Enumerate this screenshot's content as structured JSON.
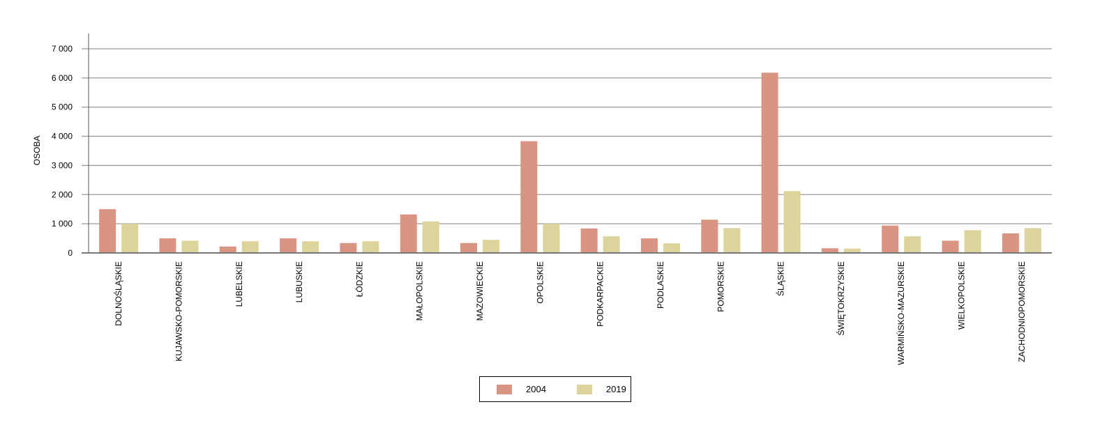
{
  "chart_data": {
    "type": "bar",
    "title": "",
    "xlabel": "",
    "ylabel": "OSOBA",
    "ylim": [
      0,
      7000
    ],
    "yticks": [
      0,
      1000,
      2000,
      3000,
      4000,
      5000,
      6000,
      7000
    ],
    "ytick_labels": [
      "0",
      "1 000",
      "2 000",
      "3 000",
      "4 000",
      "5 000",
      "6 000",
      "7 000"
    ],
    "grid": true,
    "legend_position": "bottom",
    "categories": [
      "DOLNOŚLĄSKIE",
      "KUJAWSKO-POMORSKIE",
      "LUBELSKIE",
      "LUBUSKIE",
      "ŁÓDZKIE",
      "MAŁOPOLSKIE",
      "MAZOWIECKIE",
      "OPOLSKIE",
      "PODKARPACKIE",
      "PODLASKIE",
      "POMORSKIE",
      "ŚLĄSKIE",
      "ŚWIĘTOKRZYSKIE",
      "WARMIŃSKO-MAZURSKIE",
      "WIELKOPOLSKIE",
      "ZACHODNIOPOMORSKIE"
    ],
    "series": [
      {
        "name": "2004",
        "color": "#d99482",
        "values": [
          1500,
          500,
          220,
          500,
          340,
          1320,
          340,
          3830,
          840,
          500,
          1140,
          6180,
          160,
          940,
          420,
          670
        ]
      },
      {
        "name": "2019",
        "color": "#dcd49a",
        "values": [
          1000,
          420,
          400,
          400,
          400,
          1080,
          450,
          1000,
          570,
          330,
          850,
          2120,
          150,
          570,
          780,
          850
        ]
      }
    ]
  }
}
